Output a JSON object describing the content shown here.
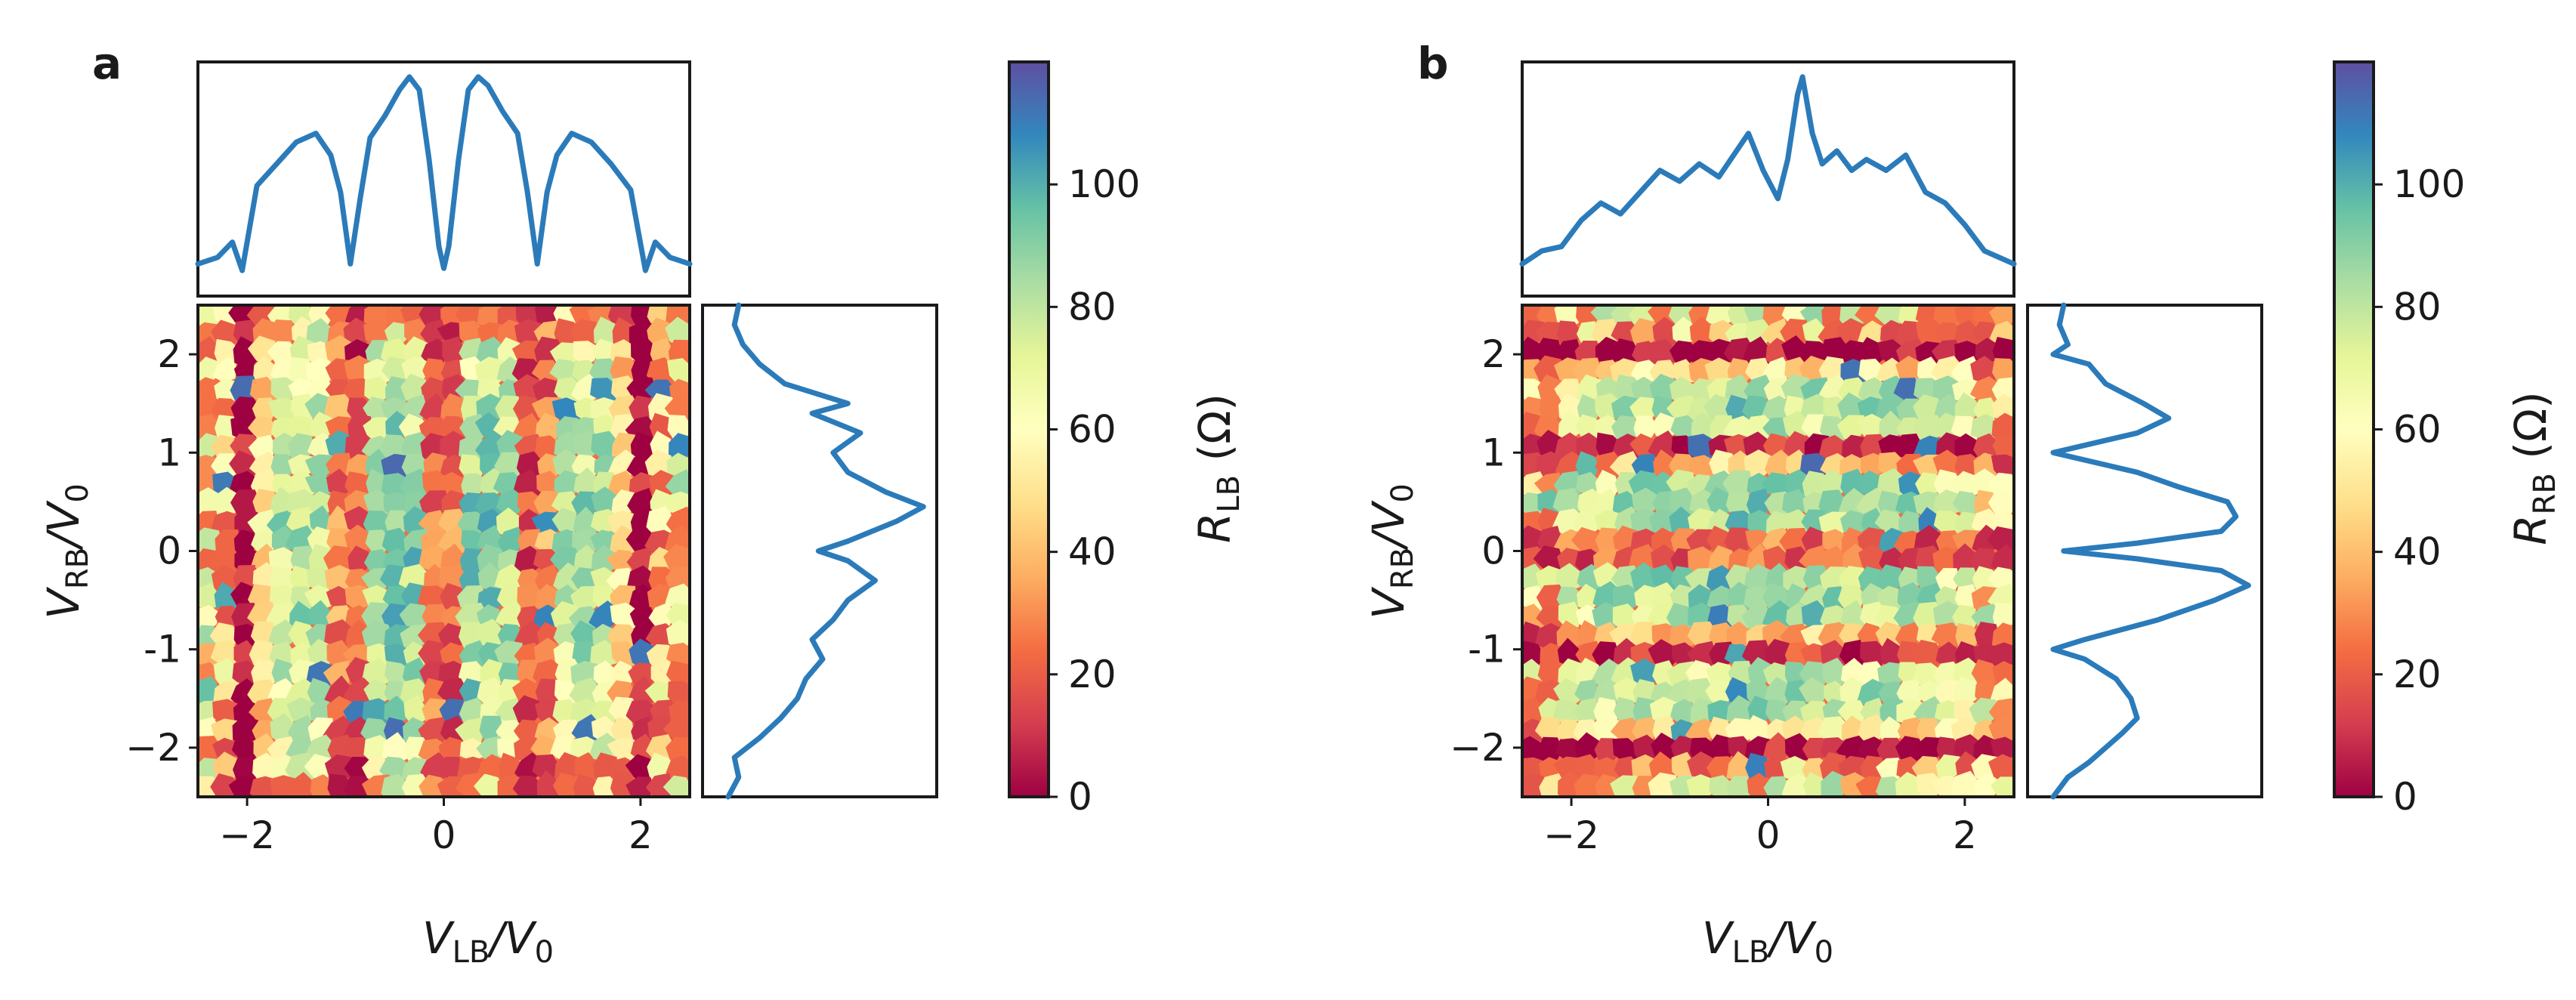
{
  "chart_data": [
    {
      "panel": "a",
      "type": "heatmap",
      "map": {
        "pattern": "vertical-bands",
        "xlabel_main": "V",
        "xlabel_sub": "LB",
        "xlabel_tail": "/V",
        "xlabel_tail_sub": "0",
        "ylabel_main": "V",
        "ylabel_sub": "RB",
        "ylabel_tail": "/V",
        "ylabel_tail_sub": "0",
        "xlim": [
          -2.5,
          2.5
        ],
        "ylim": [
          -2.5,
          2.5
        ],
        "xticks": [
          -2,
          0,
          2
        ],
        "xtick_labels": [
          "−2",
          "0",
          "2"
        ],
        "yticks": [
          -2,
          -1,
          0,
          1,
          2
        ],
        "ytick_labels": [
          "−2",
          "-1",
          "0",
          "1",
          "2"
        ],
        "resistance_minima_positions": [
          -2.0,
          -0.95,
          0.0,
          0.95,
          2.0
        ]
      },
      "colorbar": {
        "label_main": "R",
        "label_sub": "LB",
        "label_tail": " (Ω)",
        "vmin": 0,
        "vmax": 120,
        "ticks": [
          0,
          20,
          40,
          60,
          80,
          100
        ],
        "tick_labels": [
          "0",
          "20",
          "40",
          "60",
          "80",
          "100"
        ],
        "colormap": [
          "#9e0142",
          "#d53e4f",
          "#f46d43",
          "#fdae61",
          "#fee08b",
          "#ffffbf",
          "#e6f598",
          "#abdda4",
          "#66c2a5",
          "#3288bd",
          "#5e4fa2"
        ]
      },
      "top_profile": {
        "x": [
          -2.5,
          -2.3,
          -2.15,
          -2.05,
          -1.9,
          -1.7,
          -1.5,
          -1.3,
          -1.15,
          -1.05,
          -0.95,
          -0.85,
          -0.75,
          -0.6,
          -0.45,
          -0.35,
          -0.25,
          -0.15,
          -0.05,
          0.0,
          0.05,
          0.15,
          0.25,
          0.35,
          0.45,
          0.6,
          0.75,
          0.85,
          0.95,
          1.05,
          1.15,
          1.3,
          1.5,
          1.7,
          1.9,
          2.05,
          2.15,
          2.3,
          2.5
        ],
        "y": [
          0.12,
          0.15,
          0.22,
          0.09,
          0.48,
          0.58,
          0.68,
          0.72,
          0.62,
          0.45,
          0.12,
          0.42,
          0.7,
          0.8,
          0.92,
          0.98,
          0.92,
          0.6,
          0.2,
          0.1,
          0.2,
          0.6,
          0.92,
          0.98,
          0.94,
          0.82,
          0.72,
          0.45,
          0.12,
          0.45,
          0.62,
          0.72,
          0.68,
          0.58,
          0.46,
          0.09,
          0.22,
          0.15,
          0.12
        ]
      },
      "side_profile": {
        "y": [
          -2.5,
          -2.3,
          -2.1,
          -1.9,
          -1.7,
          -1.5,
          -1.3,
          -1.1,
          -0.9,
          -0.7,
          -0.5,
          -0.3,
          -0.1,
          0.0,
          0.1,
          0.3,
          0.45,
          0.6,
          0.8,
          1.0,
          1.2,
          1.4,
          1.5,
          1.7,
          1.9,
          2.1,
          2.3,
          2.5
        ],
        "x": [
          0.05,
          0.1,
          0.08,
          0.2,
          0.3,
          0.38,
          0.42,
          0.5,
          0.45,
          0.55,
          0.62,
          0.75,
          0.62,
          0.48,
          0.62,
          0.85,
          0.98,
          0.8,
          0.62,
          0.55,
          0.68,
          0.45,
          0.62,
          0.32,
          0.2,
          0.12,
          0.08,
          0.1
        ]
      }
    },
    {
      "panel": "b",
      "type": "heatmap",
      "map": {
        "pattern": "horizontal-bands",
        "xlabel_main": "V",
        "xlabel_sub": "LB",
        "xlabel_tail": "/V",
        "xlabel_tail_sub": "0",
        "ylabel_main": "V",
        "ylabel_sub": "RB",
        "ylabel_tail": "/V",
        "ylabel_tail_sub": "0",
        "xlim": [
          -2.5,
          2.5
        ],
        "ylim": [
          -2.5,
          2.5
        ],
        "xticks": [
          -2,
          0,
          2
        ],
        "xtick_labels": [
          "−2",
          "0",
          "2"
        ],
        "yticks": [
          -2,
          -1,
          0,
          1,
          2
        ],
        "ytick_labels": [
          "−2",
          "-1",
          "0",
          "1",
          "2"
        ],
        "resistance_minima_positions": [
          -2.0,
          -1.0,
          0.0,
          1.0,
          2.0
        ]
      },
      "colorbar": {
        "label_main": "R",
        "label_sub": "RB",
        "label_tail": " (Ω)",
        "vmin": 0,
        "vmax": 120,
        "ticks": [
          0,
          20,
          40,
          60,
          80,
          100
        ],
        "tick_labels": [
          "0",
          "20",
          "40",
          "60",
          "80",
          "100"
        ],
        "colormap": [
          "#9e0142",
          "#d53e4f",
          "#f46d43",
          "#fdae61",
          "#fee08b",
          "#ffffbf",
          "#e6f598",
          "#abdda4",
          "#66c2a5",
          "#3288bd",
          "#5e4fa2"
        ]
      },
      "top_profile": {
        "x": [
          -2.5,
          -2.3,
          -2.1,
          -1.9,
          -1.7,
          -1.5,
          -1.3,
          -1.1,
          -0.9,
          -0.7,
          -0.5,
          -0.35,
          -0.2,
          -0.05,
          0.1,
          0.2,
          0.3,
          0.35,
          0.45,
          0.55,
          0.7,
          0.85,
          1.0,
          1.2,
          1.4,
          1.6,
          1.8,
          2.0,
          2.2,
          2.5
        ],
        "y": [
          0.12,
          0.18,
          0.2,
          0.32,
          0.4,
          0.35,
          0.45,
          0.55,
          0.5,
          0.58,
          0.52,
          0.62,
          0.72,
          0.55,
          0.42,
          0.6,
          0.9,
          0.98,
          0.72,
          0.58,
          0.64,
          0.55,
          0.6,
          0.55,
          0.62,
          0.45,
          0.4,
          0.3,
          0.18,
          0.12
        ]
      },
      "side_profile": {
        "y": [
          -2.5,
          -2.3,
          -2.15,
          -2.0,
          -1.85,
          -1.7,
          -1.5,
          -1.3,
          -1.1,
          -1.0,
          -0.9,
          -0.7,
          -0.5,
          -0.35,
          -0.2,
          -0.08,
          0.0,
          0.08,
          0.2,
          0.35,
          0.5,
          0.65,
          0.8,
          0.95,
          1.0,
          1.05,
          1.2,
          1.35,
          1.5,
          1.7,
          1.9,
          2.0,
          2.1,
          2.3,
          2.5
        ],
        "x": [
          0.05,
          0.12,
          0.22,
          0.3,
          0.38,
          0.45,
          0.42,
          0.35,
          0.2,
          0.05,
          0.2,
          0.55,
          0.82,
          0.98,
          0.85,
          0.45,
          0.1,
          0.45,
          0.85,
          0.92,
          0.88,
          0.65,
          0.45,
          0.15,
          0.05,
          0.15,
          0.45,
          0.6,
          0.48,
          0.3,
          0.22,
          0.05,
          0.12,
          0.08,
          0.1
        ]
      }
    }
  ]
}
